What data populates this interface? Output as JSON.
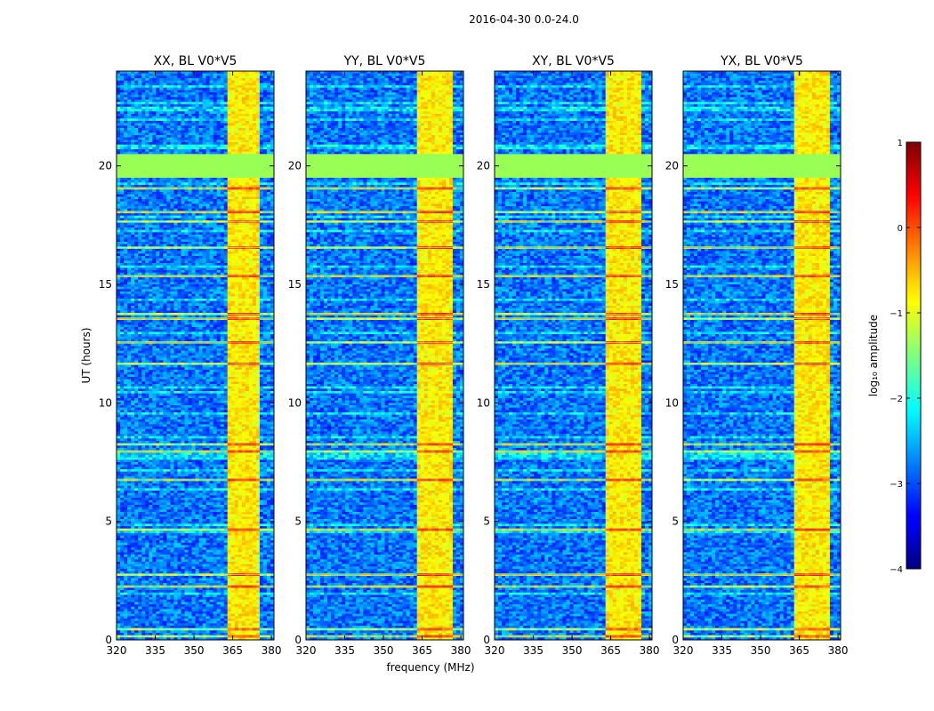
{
  "chart_data": {
    "type": "heatmap",
    "title": "2016-04-30 0.0-24.0",
    "xlabel": "frequency (MHz)",
    "ylabel": "UT (hours)",
    "xlim": [
      320,
      381
    ],
    "ylim": [
      0,
      24
    ],
    "xticks": [
      "320",
      "335",
      "350",
      "365",
      "380"
    ],
    "yticks": [
      "0",
      "5",
      "10",
      "15",
      "20"
    ],
    "colormap": "jet",
    "panels": [
      {
        "title": "XX, BL V0*V5",
        "band_start": 363,
        "band_end": 376
      },
      {
        "title": "YY, BL V0*V5",
        "band_start": 362.5,
        "band_end": 377
      },
      {
        "title": "XY, BL V0*V5",
        "band_start": 363,
        "band_end": 377
      },
      {
        "title": "YX, BL V0*V5",
        "band_start": 363,
        "band_end": 377
      }
    ],
    "flagged_range_hours": [
      19.5,
      20.5
    ],
    "flag_color": "#99ff55",
    "colorbar": {
      "label": "log₁₀ amplitude",
      "range": [
        -4,
        1
      ],
      "ticks": [
        "1",
        "0",
        "−1",
        "−2",
        "−3",
        "−4"
      ]
    }
  }
}
